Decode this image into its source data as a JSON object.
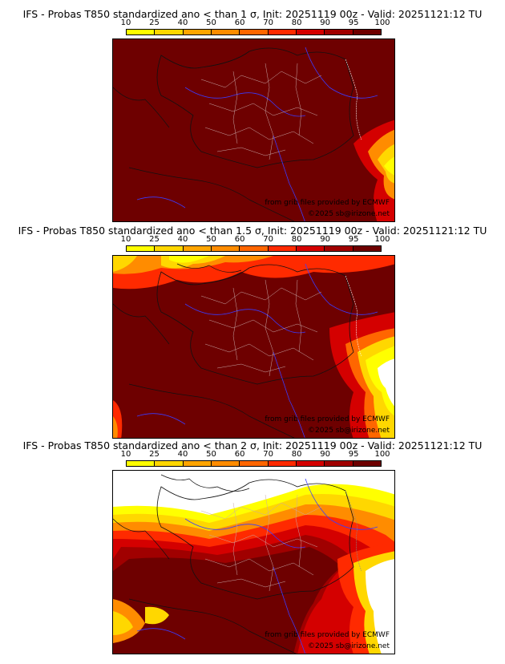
{
  "legend": {
    "ticks": [
      "10",
      "25",
      "40",
      "50",
      "60",
      "70",
      "80",
      "90",
      "95",
      "100"
    ],
    "colors": [
      "#ffff00",
      "#ffd700",
      "#ffa500",
      "#ff8c00",
      "#ff6600",
      "#ff2a00",
      "#d40000",
      "#a00000",
      "#6e0000"
    ]
  },
  "panels": [
    {
      "title": "IFS - Probas T850  standardized ano < than 1 σ, Init: 20251119 00z - Valid: 20251121:12 TU",
      "credit_source": "from grib files provided by ECMWF",
      "credit_copyright": "©2025 sb@irizone.net"
    },
    {
      "title": "IFS - Probas T850  standardized ano < than 1.5 σ, Init: 20251119 00z - Valid: 20251121:12 TU",
      "credit_source": "from grib files provided by ECMWF",
      "credit_copyright": "©2025 sb@irizone.net"
    },
    {
      "title": "IFS - Probas T850  standardized ano < than 2 σ, Init: 20251119 00z - Valid: 20251121:12 TU",
      "credit_source": "from grib files provided by ECMWF",
      "credit_copyright": "©2025 sb@irizone.net"
    }
  ]
}
